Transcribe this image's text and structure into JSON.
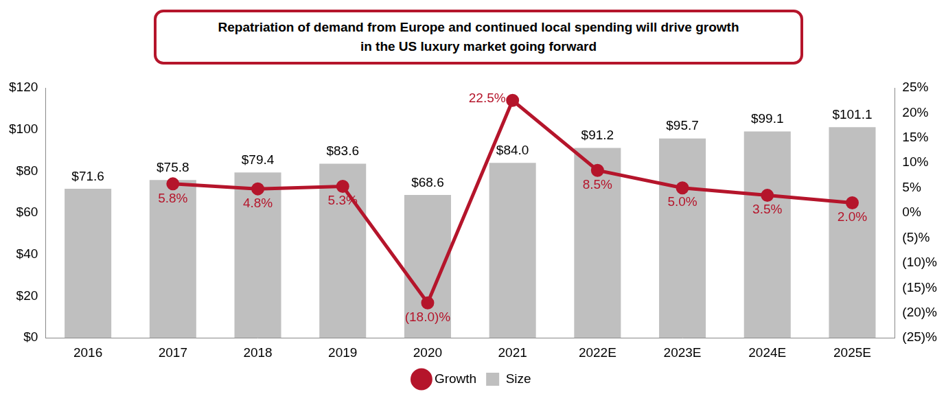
{
  "chart_data": {
    "type": "bar",
    "title": "Repatriation of demand from Europe and continued local spending will drive growth\nin the US luxury market going forward",
    "categories": [
      "2016",
      "2017",
      "2018",
      "2019",
      "2020",
      "2021",
      "2022E",
      "2023E",
      "2024E",
      "2025E"
    ],
    "series": [
      {
        "name": "Size",
        "type": "bar",
        "color": "#bfbfbf",
        "axis": "y",
        "values": [
          71.6,
          75.8,
          79.4,
          83.6,
          68.6,
          84.0,
          91.2,
          95.7,
          99.1,
          101.1
        ],
        "value_labels": [
          "$71.6",
          "$75.8",
          "$79.4",
          "$83.6",
          "$68.6",
          "$84.0",
          "$91.2",
          "$95.7",
          "$99.1",
          "$101.1"
        ]
      },
      {
        "name": "Growth",
        "type": "line",
        "color": "#b5152b",
        "axis": "y2",
        "marker": "circle",
        "line_style": "solid",
        "values": [
          null,
          5.8,
          4.8,
          5.3,
          -18.0,
          22.5,
          8.5,
          5.0,
          3.5,
          2.0
        ],
        "value_labels": [
          null,
          "5.8%",
          "4.8%",
          "5.3%",
          "(18.0)%",
          "22.5%",
          "8.5%",
          "5.0%",
          "3.5%",
          "2.0%"
        ]
      }
    ],
    "ylim": [
      0,
      120
    ],
    "yticks": [
      {
        "value": 0,
        "label": "$0"
      },
      {
        "value": 20,
        "label": "$20"
      },
      {
        "value": 40,
        "label": "$40"
      },
      {
        "value": 60,
        "label": "$60"
      },
      {
        "value": 80,
        "label": "$80"
      },
      {
        "value": 100,
        "label": "$100"
      },
      {
        "value": 120,
        "label": "$120"
      }
    ],
    "y2lim": [
      -25,
      25
    ],
    "y2ticks": [
      {
        "value": -25,
        "label": "(25)%"
      },
      {
        "value": -20,
        "label": "(20)%"
      },
      {
        "value": -15,
        "label": "(15)%"
      },
      {
        "value": -10,
        "label": "(10)%"
      },
      {
        "value": -5,
        "label": "(5)%"
      },
      {
        "value": 0,
        "label": "0%"
      },
      {
        "value": 5,
        "label": "5%"
      },
      {
        "value": 10,
        "label": "10%"
      },
      {
        "value": 15,
        "label": "15%"
      },
      {
        "value": 20,
        "label": "20%"
      },
      {
        "value": 25,
        "label": "25%"
      }
    ],
    "grid": false,
    "legend": "bottom",
    "data_labels": true
  }
}
